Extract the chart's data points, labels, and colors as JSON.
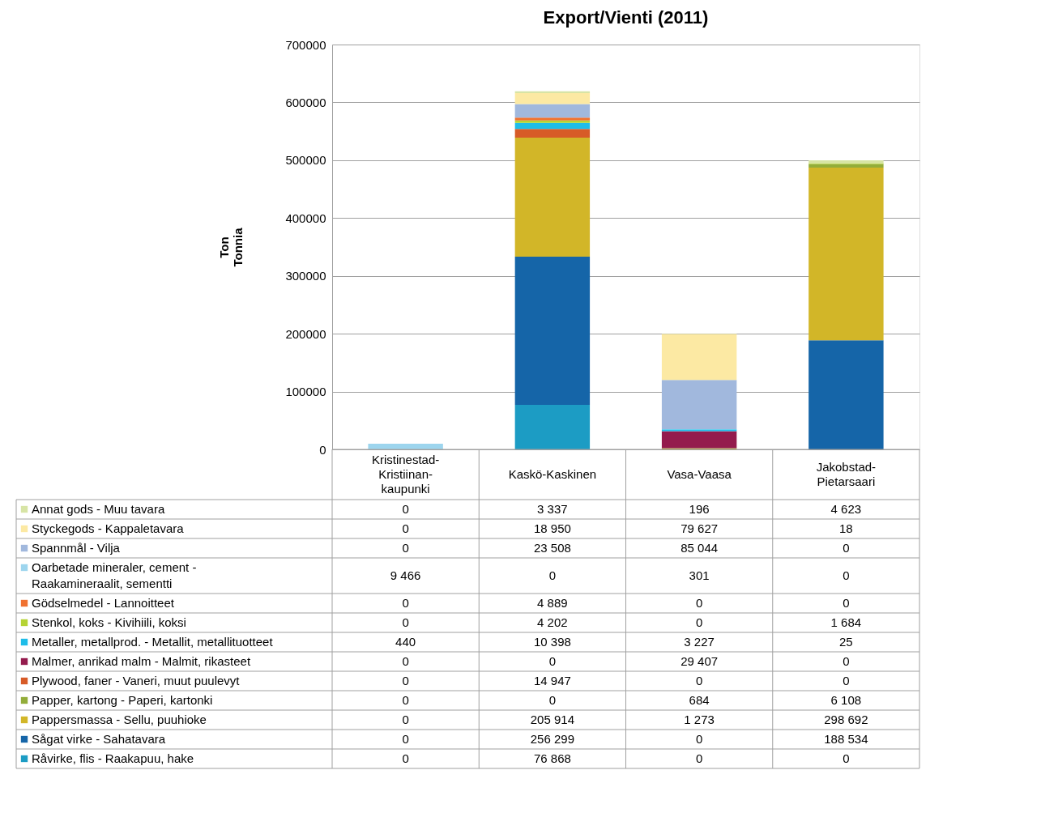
{
  "chart_data": {
    "type": "bar",
    "title": "Export/Vienti (2011)",
    "ylabel": "Ton\nTonnia",
    "categories": [
      "Kristinestad-Kristiinan-kaupunki",
      "Kaskö-Kaskinen",
      "Vasa-Vaasa",
      "Jakobstad-Pietarsaari"
    ],
    "stacked": true,
    "ylim": [
      0,
      700000
    ],
    "yticks": [
      0,
      100000,
      200000,
      300000,
      400000,
      500000,
      600000,
      700000
    ],
    "grid": "y",
    "legend": "bottom",
    "series": [
      {
        "name": "Råvirke, flis - Raakapuu, hake",
        "color": "#1c9cc4",
        "values": [
          0,
          76868,
          0,
          0
        ],
        "value_labels": [
          "0",
          "76 868",
          "0",
          "0"
        ]
      },
      {
        "name": "Sågat virke - Sahatavara",
        "color": "#1565a8",
        "values": [
          0,
          256299,
          0,
          188534
        ],
        "value_labels": [
          "0",
          "256 299",
          "0",
          "188 534"
        ]
      },
      {
        "name": "Pappersmassa - Sellu, puuhioke",
        "color": "#d2b628",
        "values": [
          0,
          205914,
          1273,
          298692
        ],
        "value_labels": [
          "0",
          "205 914",
          "1 273",
          "298 692"
        ]
      },
      {
        "name": "Papper, kartong - Paperi, kartonki",
        "color": "#93ad3a",
        "values": [
          0,
          0,
          684,
          6108
        ],
        "value_labels": [
          "0",
          "0",
          "684",
          "6 108"
        ]
      },
      {
        "name": "Plywood, faner - Vaneri, muut puulevyt",
        "color": "#d75b27",
        "values": [
          0,
          14947,
          0,
          0
        ],
        "value_labels": [
          "0",
          "14 947",
          "0",
          "0"
        ]
      },
      {
        "name": "Malmer, anrikad malm - Malmit, rikasteet",
        "color": "#941b4d",
        "values": [
          0,
          0,
          29407,
          0
        ],
        "value_labels": [
          "0",
          "0",
          "29 407",
          "0"
        ]
      },
      {
        "name": "Metaller, metallprod. - Metallit, metallituotteet",
        "color": "#1ebde9",
        "values": [
          440,
          10398,
          3227,
          25
        ],
        "value_labels": [
          "440",
          "10 398",
          "3 227",
          "25"
        ]
      },
      {
        "name": "Stenkol, koks - Kivihiili, koksi",
        "color": "#b5d334",
        "values": [
          0,
          4202,
          0,
          1684
        ],
        "value_labels": [
          "0",
          "4 202",
          "0",
          "1 684"
        ]
      },
      {
        "name": "Gödselmedel - Lannoitteet",
        "color": "#f07130",
        "values": [
          0,
          4889,
          0,
          0
        ],
        "value_labels": [
          "0",
          "4 889",
          "0",
          "0"
        ]
      },
      {
        "name": "Oarbetade mineraler, cement - Raakamineraalit, sementti",
        "color": "#9dd5ee",
        "values": [
          9466,
          0,
          301,
          0
        ],
        "value_labels": [
          "9 466",
          "0",
          "301",
          "0"
        ]
      },
      {
        "name": "Spannmål - Vilja",
        "color": "#a1b8dd",
        "values": [
          0,
          23508,
          85044,
          0
        ],
        "value_labels": [
          "0",
          "23 508",
          "85 044",
          "0"
        ]
      },
      {
        "name": "Styckegods - Kappaletavara",
        "color": "#fce9a3",
        "values": [
          0,
          18950,
          79627,
          18
        ],
        "value_labels": [
          "0",
          "18 950",
          "79 627",
          "18"
        ]
      },
      {
        "name": "Annat gods - Muu tavara",
        "color": "#d7e4a5",
        "values": [
          0,
          3337,
          196,
          4623
        ],
        "value_labels": [
          "0",
          "3 337",
          "196",
          "4 623"
        ]
      }
    ]
  }
}
